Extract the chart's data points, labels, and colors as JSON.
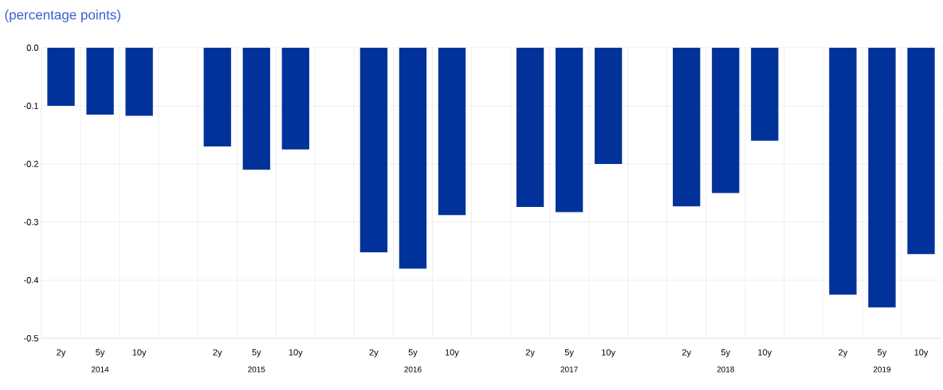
{
  "chart_data": {
    "type": "bar",
    "title": "(percentage points)",
    "categories": [
      "2y",
      "5y",
      "10y",
      null,
      "2y",
      "5y",
      "10y",
      null,
      "2y",
      "5y",
      "10y",
      null,
      "2y",
      "5y",
      "10y",
      null,
      "2y",
      "5y",
      "10y",
      null,
      "2y",
      "5y",
      "10y"
    ],
    "values": [
      -0.1,
      -0.115,
      -0.117,
      null,
      -0.17,
      -0.21,
      -0.175,
      null,
      -0.352,
      -0.38,
      -0.288,
      null,
      -0.274,
      -0.283,
      -0.2,
      null,
      -0.273,
      -0.25,
      -0.16,
      null,
      -0.425,
      -0.447,
      -0.355
    ],
    "color": "#003299",
    "annotations": [
      "2014",
      "2015",
      "2016",
      "2017",
      "2018",
      "2019"
    ],
    "ylim": [
      -0.5,
      0
    ],
    "yticks": [
      {
        "value": -0.5,
        "label": "-0.5"
      },
      {
        "value": -0.4,
        "label": "-0.4"
      },
      {
        "value": -0.3,
        "label": "-0.3"
      },
      {
        "value": -0.2,
        "label": "-0.2"
      },
      {
        "value": -0.1,
        "label": "-0.1"
      },
      {
        "value": 0,
        "label": "0.0"
      }
    ],
    "grid": true
  }
}
